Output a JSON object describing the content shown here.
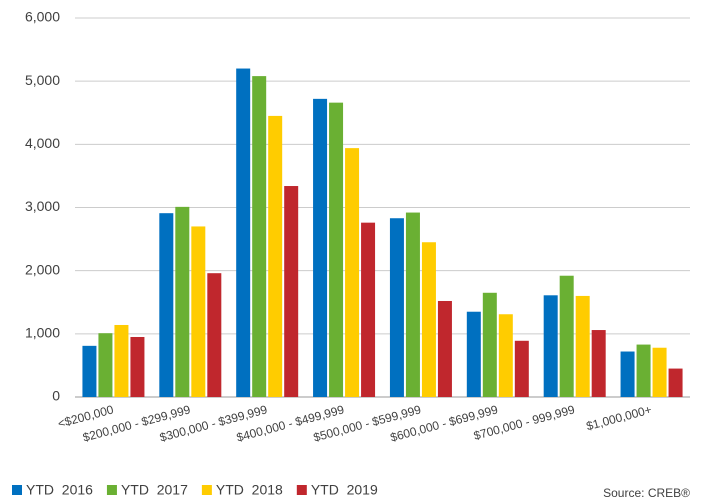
{
  "chart_data": {
    "type": "bar",
    "categories": [
      "<$200,000",
      "$200,000 - $299,999",
      "$300,000 - $399,999",
      "$400,000 - $499,999",
      "$500,000 - $599,999",
      "$600,000 - $699,999",
      "$700,000 - 999,999",
      "$1,000,000+"
    ],
    "series": [
      {
        "name": "YTD  2016",
        "color": "#0070c0",
        "values": [
          810,
          2910,
          5200,
          4720,
          2830,
          1350,
          1610,
          720
        ]
      },
      {
        "name": "YTD  2017",
        "color": "#6ab033",
        "values": [
          1010,
          3010,
          5080,
          4660,
          2920,
          1650,
          1920,
          830
        ]
      },
      {
        "name": "YTD  2018",
        "color": "#ffcc00",
        "values": [
          1140,
          2700,
          4450,
          3940,
          2450,
          1310,
          1600,
          780
        ]
      },
      {
        "name": "YTD  2019",
        "color": "#c0272d",
        "values": [
          950,
          1960,
          3340,
          2760,
          1520,
          890,
          1060,
          450
        ]
      }
    ],
    "ylim": [
      0,
      6000
    ],
    "yticks": [
      0,
      {
        "value": 1000,
        "label": "1,000"
      },
      {
        "value": 2000,
        "label": "2,000"
      },
      {
        "value": 3000,
        "label": "3,000"
      },
      {
        "value": 4000,
        "label": "4,000"
      },
      {
        "value": 5000,
        "label": "5,000"
      },
      {
        "value": 6000,
        "label": "6,000"
      }
    ],
    "grid": true,
    "legend": "bottom-left",
    "source": "Source: CREB®"
  }
}
